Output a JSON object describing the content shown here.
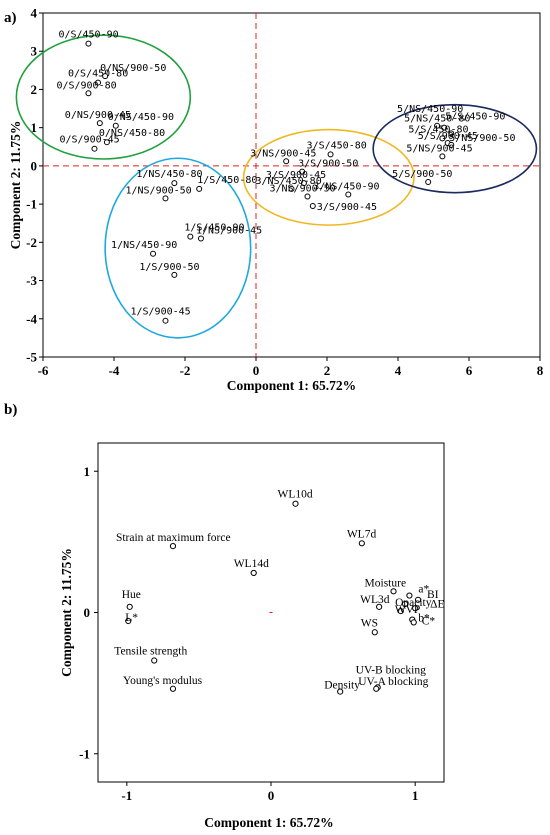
{
  "chart_data": [
    {
      "type": "scatter",
      "panel_label": "a)",
      "title": "",
      "xlabel": "Component 1: 65.72%",
      "ylabel": "Component 2: 11.75%",
      "xlim": [
        -6,
        8
      ],
      "ylim": [
        -5,
        4
      ],
      "xticks": [
        -6,
        -4,
        -2,
        0,
        2,
        4,
        6,
        8
      ],
      "yticks": [
        -5,
        -4,
        -3,
        -2,
        -1,
        0,
        1,
        2,
        3,
        4
      ],
      "reference_lines": {
        "x": 0,
        "y": 0,
        "color": "#e02020",
        "style": "dashed"
      },
      "points": [
        {
          "label": "0/S/450-90",
          "x": -4.72,
          "y": 3.2
        },
        {
          "label": "0/S/450-80",
          "x": -4.45,
          "y": 2.18
        },
        {
          "label": "0/NS/900-50",
          "x": -4.25,
          "y": 2.35
        },
        {
          "label": "0/S/900-80",
          "x": -4.72,
          "y": 1.9
        },
        {
          "label": "0/NS/900-45",
          "x": -4.4,
          "y": 1.12
        },
        {
          "label": "0/NS/450-90",
          "x": -3.95,
          "y": 1.05
        },
        {
          "label": "0/NS/450-80",
          "x": -4.2,
          "y": 0.62
        },
        {
          "label": "0/S/900-45",
          "x": -4.55,
          "y": 0.45
        },
        {
          "label": "1/NS/450-80",
          "x": -2.3,
          "y": -0.45
        },
        {
          "label": "1/S/450-80",
          "x": -1.6,
          "y": -0.6
        },
        {
          "label": "1/NS/900-50",
          "x": -2.55,
          "y": -0.85
        },
        {
          "label": "1/S/450-90",
          "x": -1.85,
          "y": -1.85
        },
        {
          "label": "1/NS/900-45",
          "x": -1.55,
          "y": -1.9
        },
        {
          "label": "1/NS/450-90",
          "x": -2.9,
          "y": -2.3
        },
        {
          "label": "1/S/900-50",
          "x": -2.3,
          "y": -2.85
        },
        {
          "label": "1/S/900-45",
          "x": -2.55,
          "y": -4.05
        },
        {
          "label": "3/S/450-80",
          "x": 2.1,
          "y": 0.3
        },
        {
          "label": "3/NS/900-45",
          "x": 0.85,
          "y": 0.12
        },
        {
          "label": "3/S/900-50",
          "x": 1.3,
          "y": -0.15
        },
        {
          "label": "3/S/900-45",
          "x": 1.35,
          "y": -0.45
        },
        {
          "label": "3/NS/450-80",
          "x": 1.0,
          "y": -0.6
        },
        {
          "label": "3/NS/900-50",
          "x": 1.45,
          "y": -0.8
        },
        {
          "label": "3/NS/450-90",
          "x": 2.6,
          "y": -0.75
        },
        {
          "label": "3/S/900-45b",
          "x": 1.6,
          "y": -1.05
        },
        {
          "label": "5/NS/450-90",
          "x": 5.1,
          "y": 1.05
        },
        {
          "label": "5/NS/450-80",
          "x": 5.3,
          "y": 1.0
        },
        {
          "label": "5/S/450-90",
          "x": 5.5,
          "y": 0.85
        },
        {
          "label": "5/S/450-80",
          "x": 5.25,
          "y": 0.72
        },
        {
          "label": "5/S/900-45",
          "x": 5.4,
          "y": 0.6
        },
        {
          "label": "5/NS/900-50",
          "x": 5.5,
          "y": 0.55
        },
        {
          "label": "5/NS/900-45",
          "x": 5.25,
          "y": 0.25
        },
        {
          "label": "5/S/900-50",
          "x": 4.85,
          "y": -0.42
        }
      ],
      "clusters": [
        {
          "color": "#20a040"
        },
        {
          "color": "#1ea8e0"
        },
        {
          "color": "#f0b820"
        },
        {
          "color": "#1a2a60"
        }
      ]
    },
    {
      "type": "scatter",
      "panel_label": "b)",
      "title": "",
      "xlabel": "Component 1: 65.72%",
      "ylabel": "Component 2: 11.75%",
      "xlim": [
        -1.2,
        1.2
      ],
      "ylim": [
        -1.2,
        1.2
      ],
      "xticks": [
        -1,
        0,
        1
      ],
      "yticks": [
        -1,
        0,
        1
      ],
      "points": [
        {
          "label": "WL10d",
          "x": 0.17,
          "y": 0.77
        },
        {
          "label": "WL7d",
          "x": 0.63,
          "y": 0.49
        },
        {
          "label": "Strain at maximum force",
          "x": -0.68,
          "y": 0.47
        },
        {
          "label": "WL14d",
          "x": -0.12,
          "y": 0.28
        },
        {
          "label": "Moisture",
          "x": 0.85,
          "y": 0.15
        },
        {
          "label": "a*",
          "x": 0.96,
          "y": 0.12
        },
        {
          "label": "BI",
          "x": 1.02,
          "y": 0.09
        },
        {
          "label": "Opacity",
          "x": 0.93,
          "y": 0.06
        },
        {
          "label": "WL3d",
          "x": 0.75,
          "y": 0.04
        },
        {
          "label": "ΔE",
          "x": 1.0,
          "y": 0.03
        },
        {
          "label": "WVP",
          "x": 0.9,
          "y": 0.01
        },
        {
          "label": "b*",
          "x": 0.98,
          "y": -0.05
        },
        {
          "label": "C*",
          "x": 0.99,
          "y": -0.07
        },
        {
          "label": "WS",
          "x": 0.72,
          "y": -0.14
        },
        {
          "label": "Hue",
          "x": -0.98,
          "y": 0.04
        },
        {
          "label": "L*",
          "x": -0.99,
          "y": -0.06
        },
        {
          "label": "Tensile strength",
          "x": -0.81,
          "y": -0.34
        },
        {
          "label": "UV-B blocking",
          "x": 0.74,
          "y": -0.53
        },
        {
          "label": "UV-A blocking",
          "x": 0.73,
          "y": -0.54
        },
        {
          "label": "Density",
          "x": 0.48,
          "y": -0.56
        },
        {
          "label": "Young's modulus",
          "x": -0.68,
          "y": -0.54
        }
      ]
    }
  ]
}
